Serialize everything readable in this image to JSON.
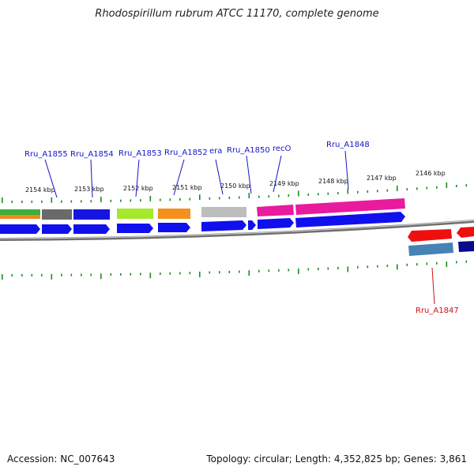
{
  "title": "Rhodospirillum rubrum ATCC 11170, complete genome",
  "accession_text": "Accession: NC_007643",
  "summary_text": "Topology: circular; Length: 4,352,825 bp; Genes: 3,861",
  "colors": {
    "backbone": "#8c8c8c",
    "tick": "#1a8f1a",
    "forward_label": "#1515c8",
    "reverse_label": "#cc1111",
    "cds_forward": "#1010ee",
    "cds_reverse": "#ee1010"
  },
  "ruler_upper": [
    "2154 kbp",
    "2153 kbp",
    "2152 kbp",
    "2151 kbp",
    "2150 kbp",
    "2149 kbp",
    "2148 kbp",
    "2147 kbp",
    "2146 kbp"
  ],
  "gene_labels_forward": [
    "Rru_A1855",
    "Rru_A1854",
    "Rru_A1853",
    "Rru_A1852",
    "era",
    "Rru_A1850",
    "recO",
    "Rru_A1848"
  ],
  "gene_labels_reverse": [
    "Rru_A1847"
  ]
}
